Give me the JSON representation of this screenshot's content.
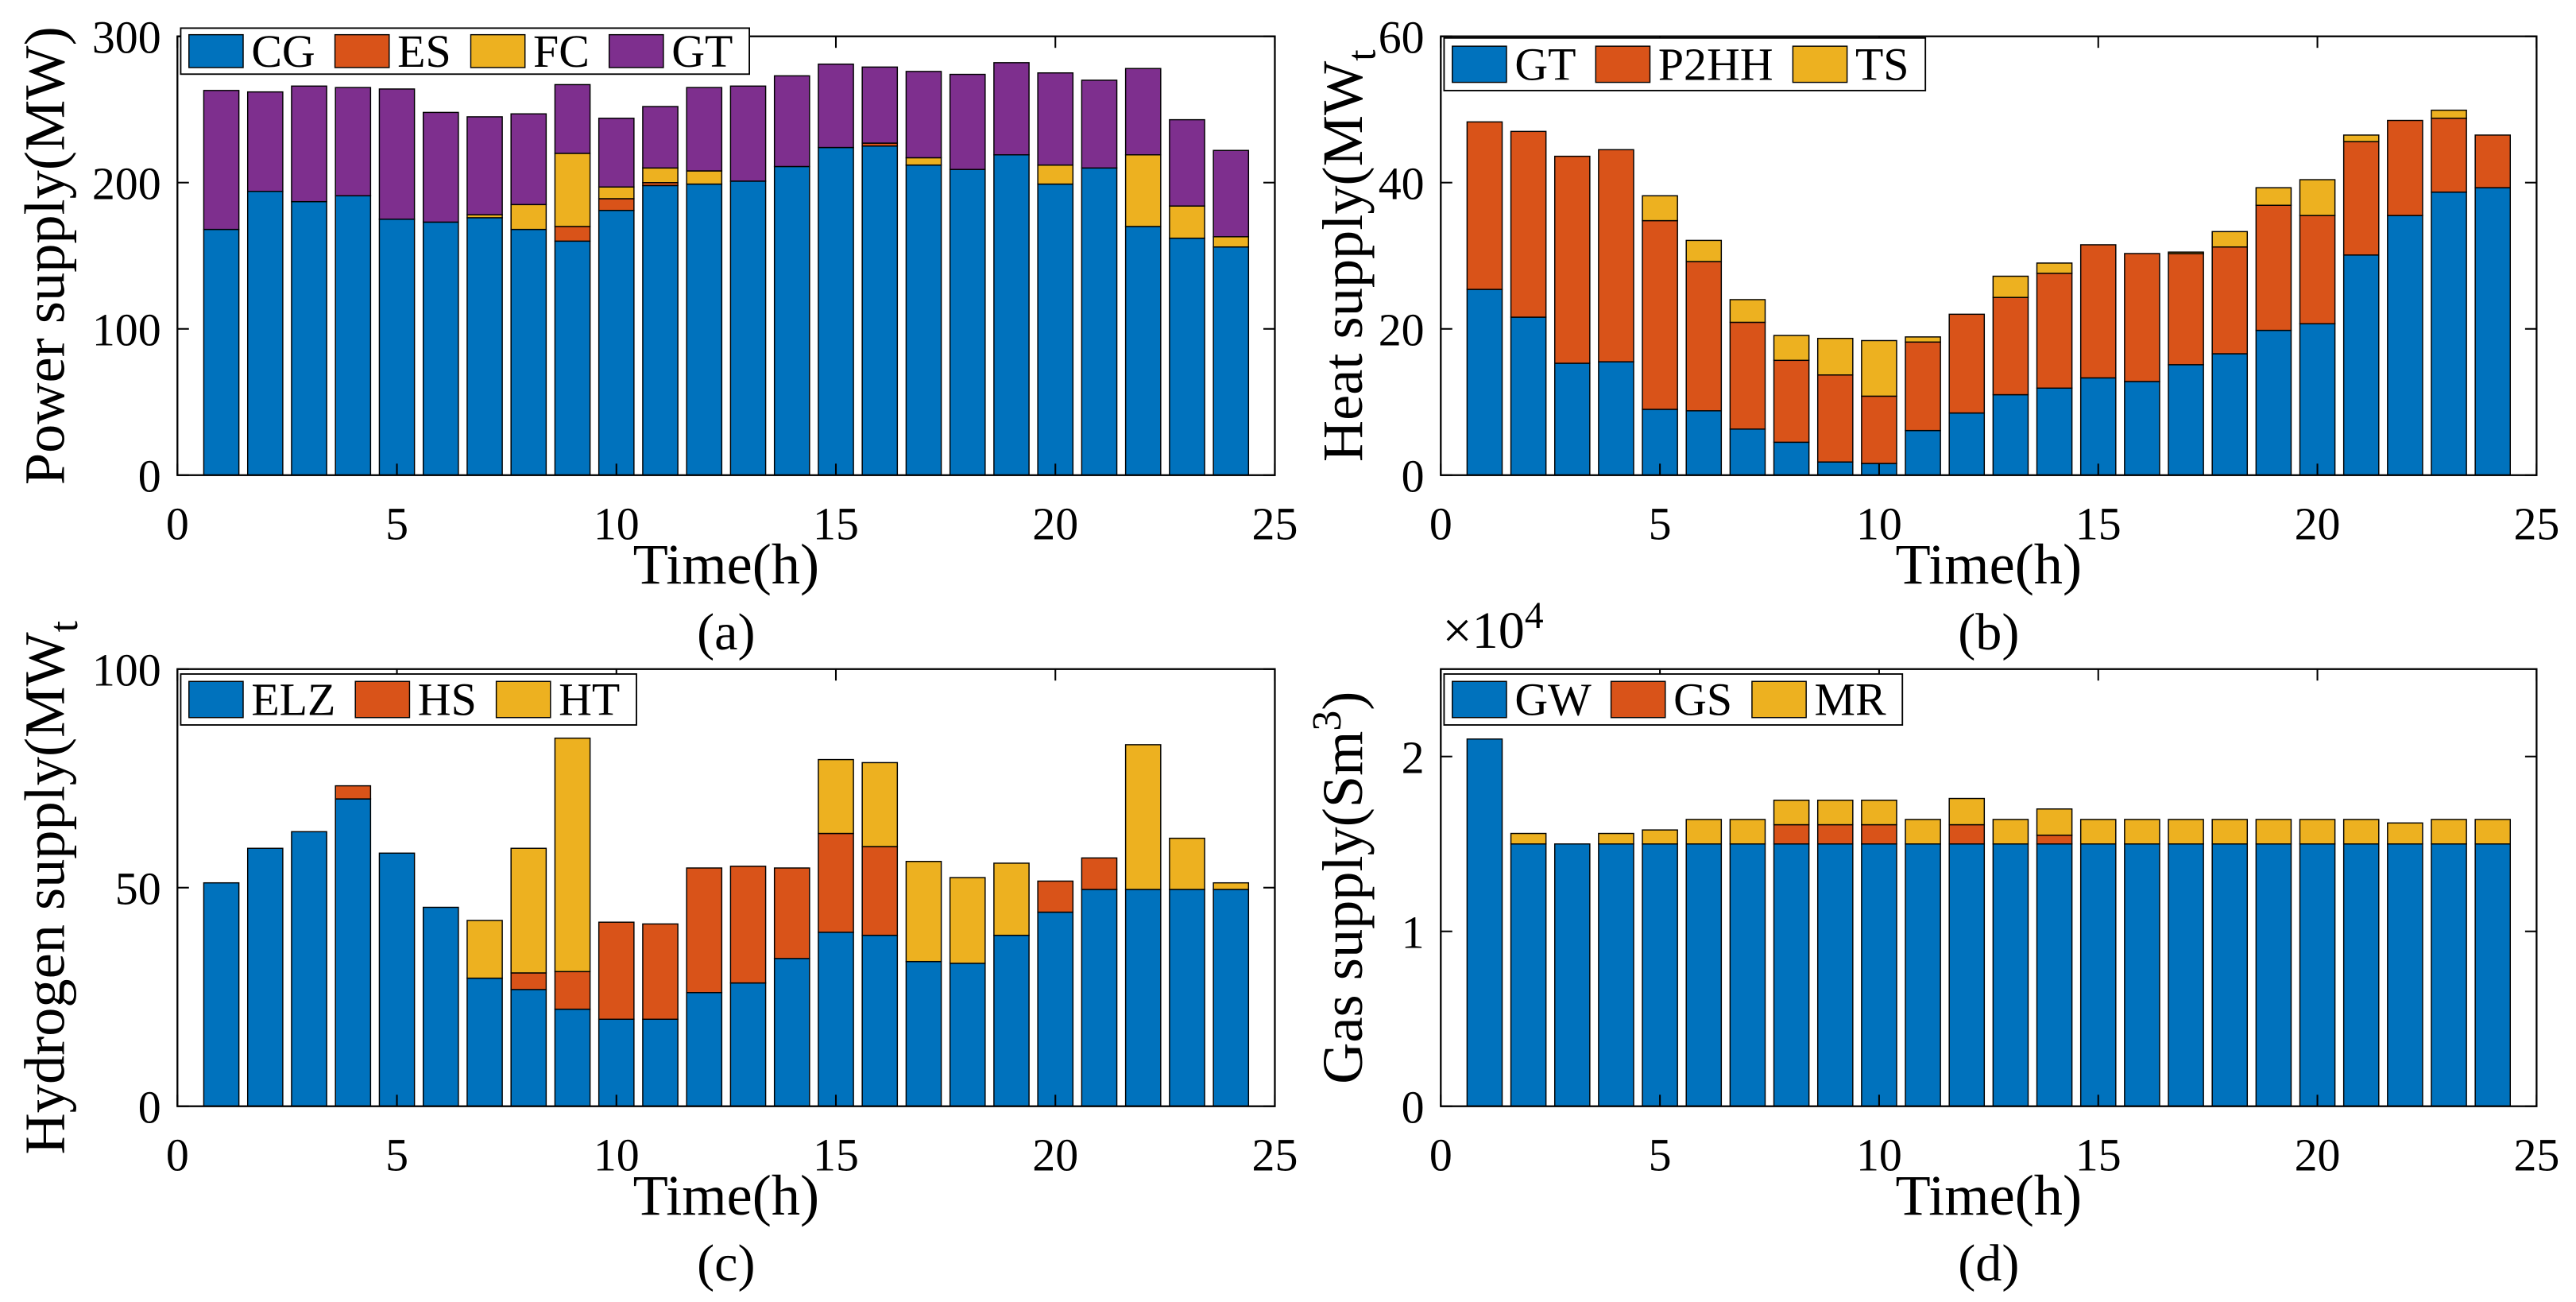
{
  "chart_data": [
    {
      "caption": "(a)",
      "type": "bar",
      "stacked": true,
      "xlabel": "Time(h)",
      "ylabel": "Power supply(MW)",
      "xlim": [
        0,
        25
      ],
      "ylim": [
        0,
        300
      ],
      "xticks": [
        0,
        5,
        10,
        15,
        20,
        25
      ],
      "yticks": [
        0,
        100,
        200,
        300
      ],
      "legend_position": "top-left",
      "x": [
        1,
        2,
        3,
        4,
        5,
        6,
        7,
        8,
        9,
        10,
        11,
        12,
        13,
        14,
        15,
        16,
        17,
        18,
        19,
        20,
        21,
        22,
        23,
        24
      ],
      "series": [
        {
          "name": "CG",
          "color": "#0072BD",
          "values": [
            168,
            194,
            187,
            191,
            175,
            173,
            176,
            168,
            160,
            181,
            198,
            199,
            201,
            211,
            224,
            225,
            212,
            209,
            219,
            199,
            210,
            170,
            162,
            156
          ]
        },
        {
          "name": "ES",
          "color": "#D95319",
          "values": [
            0,
            0,
            0,
            0,
            0,
            0,
            0,
            0,
            10,
            8,
            2,
            0,
            0,
            0,
            0,
            2,
            0,
            0,
            0,
            0,
            0,
            0,
            0,
            0
          ]
        },
        {
          "name": "FC",
          "color": "#EDB120",
          "values": [
            0,
            0,
            0,
            0,
            0,
            0,
            2,
            17,
            50,
            8,
            10,
            9,
            0,
            0,
            0,
            0,
            5,
            0,
            0,
            13,
            0,
            49,
            22,
            7
          ]
        },
        {
          "name": "GT",
          "color": "#7E2F8E",
          "values": [
            95,
            68,
            79,
            74,
            89,
            75,
            67,
            62,
            47,
            47,
            42,
            57,
            65,
            62,
            57,
            52,
            59,
            65,
            63,
            63,
            60,
            59,
            59,
            59
          ]
        }
      ]
    },
    {
      "caption": "(b)",
      "type": "bar",
      "stacked": true,
      "xlabel": "Time(h)",
      "ylabel": "Heat supply(MW",
      "ylabel_subscript": "t",
      "xlim": [
        0,
        25
      ],
      "ylim": [
        0,
        60
      ],
      "xticks": [
        0,
        5,
        10,
        15,
        20,
        25
      ],
      "yticks": [
        0,
        20,
        40,
        60
      ],
      "legend_position": "top-left",
      "x": [
        1,
        2,
        3,
        4,
        5,
        6,
        7,
        8,
        9,
        10,
        11,
        12,
        13,
        14,
        15,
        16,
        17,
        18,
        19,
        20,
        21,
        22,
        23,
        24
      ],
      "series": [
        {
          "name": "GT",
          "color": "#0072BD",
          "values": [
            25.4,
            21.6,
            15.3,
            15.5,
            9.0,
            8.8,
            6.3,
            4.5,
            1.8,
            1.6,
            6.1,
            8.5,
            11.0,
            11.9,
            13.3,
            12.8,
            15.1,
            16.6,
            19.8,
            20.7,
            30.1,
            35.5,
            38.7,
            39.3
          ]
        },
        {
          "name": "P2HH",
          "color": "#D95319",
          "values": [
            22.9,
            25.4,
            28.3,
            29.0,
            25.8,
            20.4,
            14.6,
            11.2,
            11.9,
            9.2,
            12.1,
            13.5,
            13.3,
            15.7,
            18.2,
            17.5,
            15.2,
            14.6,
            17.1,
            14.8,
            15.5,
            13.0,
            10.1,
            7.2
          ]
        },
        {
          "name": "TS",
          "color": "#EDB120",
          "values": [
            0,
            0,
            0,
            0,
            3.4,
            2.9,
            3.1,
            3.4,
            5.0,
            7.6,
            0.7,
            0,
            2.9,
            1.4,
            0,
            0,
            0.2,
            2.1,
            2.4,
            4.9,
            0.9,
            0,
            1.1,
            0
          ]
        }
      ]
    },
    {
      "caption": "(c)",
      "type": "bar",
      "stacked": true,
      "xlabel": "Time(h)",
      "ylabel": "Hydrogen supply(MW",
      "ylabel_subscript": "t",
      "xlim": [
        0,
        25
      ],
      "ylim": [
        0,
        100
      ],
      "xticks": [
        0,
        5,
        10,
        15,
        20,
        25
      ],
      "yticks": [
        0,
        50,
        100
      ],
      "legend_position": "top-left",
      "x": [
        1,
        2,
        3,
        4,
        5,
        6,
        7,
        8,
        9,
        10,
        11,
        12,
        13,
        14,
        15,
        16,
        17,
        18,
        19,
        20,
        21,
        22,
        23,
        24
      ],
      "series": [
        {
          "name": "ELZ",
          "color": "#0072BD",
          "values": [
            51.1,
            59.0,
            62.8,
            70.3,
            57.9,
            45.5,
            29.3,
            26.7,
            22.2,
            19.9,
            19.9,
            26.0,
            28.2,
            33.8,
            39.8,
            39.1,
            33.1,
            32.7,
            39.1,
            44.4,
            49.6,
            49.6,
            49.6,
            49.6
          ]
        },
        {
          "name": "HS",
          "color": "#D95319",
          "values": [
            0,
            0,
            0,
            3.0,
            0,
            0,
            0,
            3.8,
            8.6,
            22.2,
            21.8,
            28.5,
            26.7,
            20.7,
            22.6,
            20.3,
            0,
            0,
            0,
            7.1,
            7.2,
            0,
            0,
            0
          ]
        },
        {
          "name": "HT",
          "color": "#EDB120",
          "values": [
            0,
            0,
            0,
            0,
            0,
            0,
            13.2,
            28.5,
            53.4,
            0,
            0,
            0,
            0,
            0,
            16.9,
            19.2,
            22.9,
            19.6,
            16.5,
            0,
            0,
            33.1,
            11.7,
            1.5
          ]
        }
      ]
    },
    {
      "caption": "(d)",
      "type": "bar",
      "stacked": true,
      "xlabel": "Time(h)",
      "ylabel": "Gas supply(Sm",
      "ylabel_superscript": "3",
      "ylabel_suffix": ")",
      "y_multiplier": "×10",
      "y_multiplier_exponent": "4",
      "xlim": [
        0,
        25
      ],
      "ylim": [
        0,
        2.5
      ],
      "xticks": [
        0,
        5,
        10,
        15,
        20,
        25
      ],
      "yticks": [
        0,
        1,
        2
      ],
      "legend_position": "top-left",
      "x": [
        1,
        2,
        3,
        4,
        5,
        6,
        7,
        8,
        9,
        10,
        11,
        12,
        13,
        14,
        15,
        16,
        17,
        18,
        19,
        20,
        21,
        22,
        23,
        24
      ],
      "series": [
        {
          "name": "GW",
          "color": "#0072BD",
          "values": [
            2.1,
            1.5,
            1.5,
            1.5,
            1.5,
            1.5,
            1.5,
            1.5,
            1.5,
            1.5,
            1.5,
            1.5,
            1.5,
            1.5,
            1.5,
            1.5,
            1.5,
            1.5,
            1.5,
            1.5,
            1.5,
            1.5,
            1.5,
            1.5
          ]
        },
        {
          "name": "GS",
          "color": "#D95319",
          "values": [
            0,
            0,
            0,
            0,
            0,
            0,
            0,
            0.11,
            0.11,
            0.11,
            0,
            0.11,
            0,
            0.05,
            0,
            0,
            0,
            0,
            0,
            0,
            0,
            0,
            0,
            0
          ]
        },
        {
          "name": "MR",
          "color": "#EDB120",
          "values": [
            0,
            0.06,
            0,
            0.06,
            0.08,
            0.14,
            0.14,
            0.14,
            0.14,
            0.14,
            0.14,
            0.15,
            0.14,
            0.15,
            0.14,
            0.14,
            0.14,
            0.14,
            0.14,
            0.14,
            0.14,
            0.12,
            0.14,
            0.14
          ]
        }
      ]
    }
  ]
}
